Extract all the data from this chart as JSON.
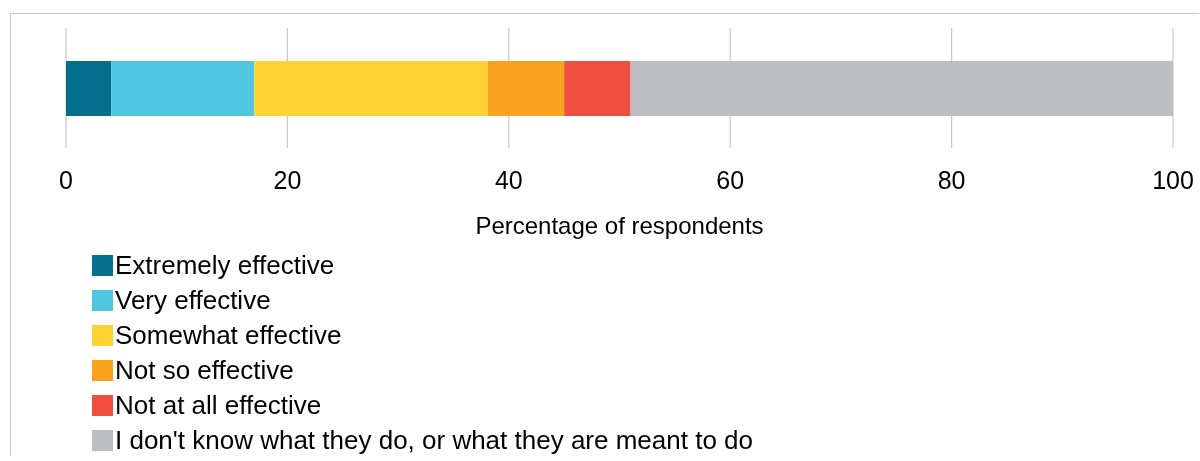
{
  "chart_data": {
    "type": "bar",
    "orientation": "horizontal",
    "stacked": true,
    "categories": [
      null
    ],
    "series": [
      {
        "name": "Extremely effective",
        "color": "#036f8c",
        "values": [
          4.1
        ]
      },
      {
        "name": "Very effective",
        "color": "#4fc6e0",
        "values": [
          12.9
        ]
      },
      {
        "name": "Somewhat effective",
        "color": "#ffd332",
        "values": [
          21.1
        ]
      },
      {
        "name": "Not so effective",
        "color": "#f8a21e",
        "values": [
          6.9
        ]
      },
      {
        "name": "Not at all effective",
        "color": "#ef4e3f",
        "values": [
          6.0
        ]
      },
      {
        "name": "I don't know what they do, or what they are meant to do",
        "color": "#bdbec0",
        "values": [
          49.0
        ]
      }
    ],
    "xlabel": "Percentage of respondents",
    "xlim": [
      0,
      100
    ],
    "xticks": [
      0,
      20,
      40,
      60,
      80,
      100
    ],
    "grid": "x",
    "legend": "bottom left"
  }
}
